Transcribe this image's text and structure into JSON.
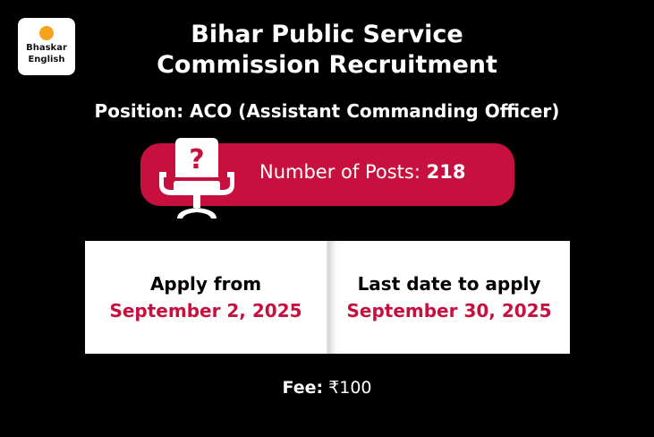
{
  "logo": {
    "line1": "Bhaskar",
    "line2": "English"
  },
  "title": {
    "line1": "Bihar Public Service",
    "line2": "Commission Recruitment"
  },
  "position": "Position: ACO (Assistant Commanding Officer)",
  "posts": {
    "label": "Number of Posts:",
    "value": "218",
    "icon": "office-chair-question-icon"
  },
  "apply_from": {
    "label": "Apply from",
    "date": "September 2, 2025"
  },
  "last_date": {
    "label": "Last date to apply",
    "date": "September 30, 2025"
  },
  "fee": {
    "label": "Fee:",
    "value": "₹100"
  },
  "colors": {
    "accent": "#c8103f",
    "logo_dot": "#f7a21b",
    "background": "#000000"
  }
}
